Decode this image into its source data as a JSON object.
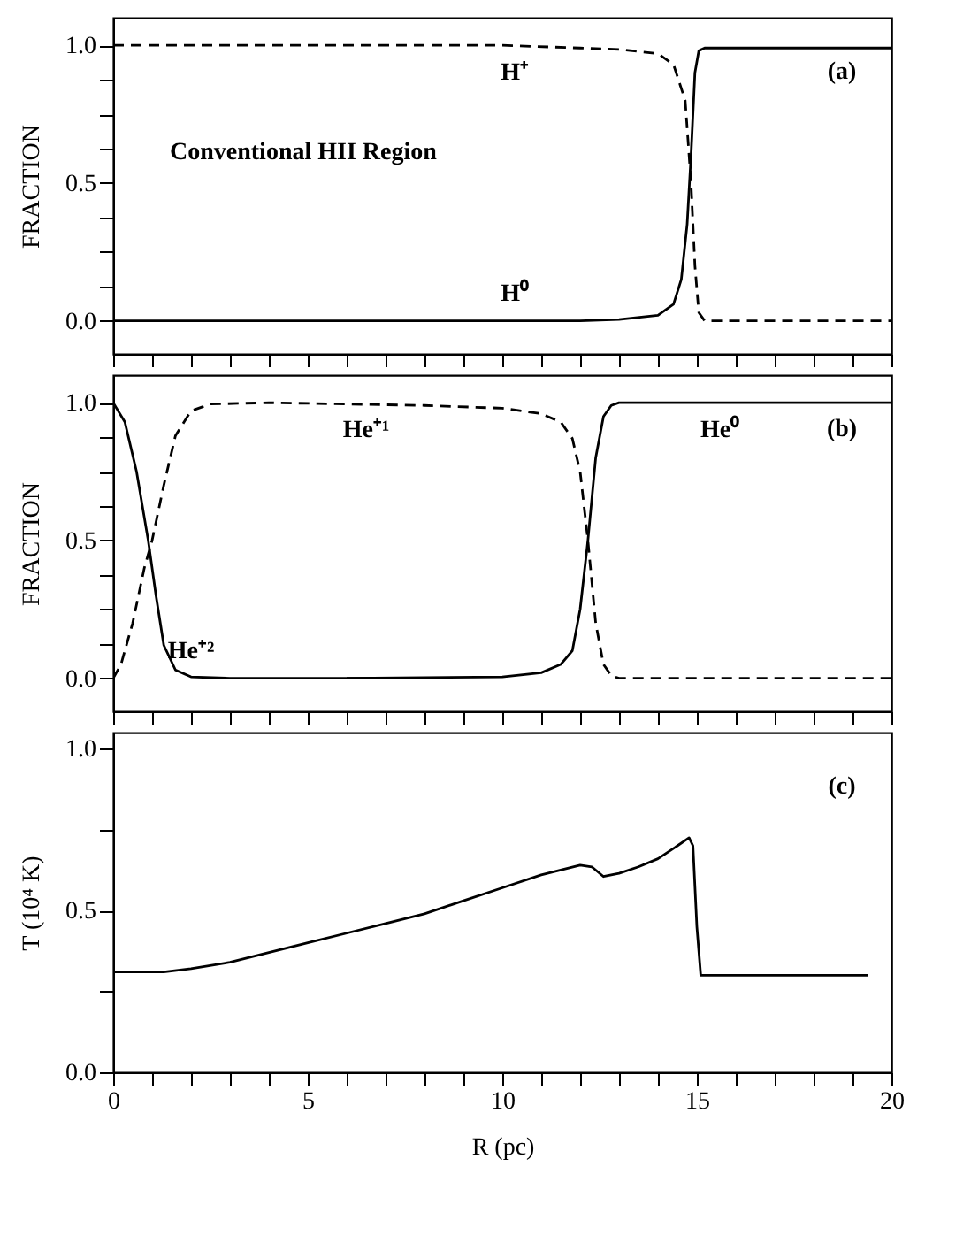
{
  "chart_data": [
    {
      "type": "line",
      "ylabel": "FRACTION",
      "tick_labels": "y",
      "xlim": [
        0,
        20
      ],
      "ylim": [
        -0.12,
        1.1
      ],
      "xticks": [
        0,
        {
          "value": 1,
          "label": null
        },
        {
          "value": 2,
          "label": null
        },
        {
          "value": 3,
          "label": null
        },
        {
          "value": 4,
          "label": null
        },
        5,
        {
          "value": 6,
          "label": null
        },
        {
          "value": 7,
          "label": null
        },
        {
          "value": 8,
          "label": null
        },
        {
          "value": 9,
          "label": null
        },
        10,
        {
          "value": 11,
          "label": null
        },
        {
          "value": 12,
          "label": null
        },
        {
          "value": 13,
          "label": null
        },
        {
          "value": 14,
          "label": null
        },
        15,
        {
          "value": 16,
          "label": null
        },
        {
          "value": 17,
          "label": null
        },
        {
          "value": 18,
          "label": null
        },
        {
          "value": 19,
          "label": null
        },
        20
      ],
      "yticks": [
        {
          "value": 0,
          "label": "0.0"
        },
        {
          "value": 0.125,
          "label": null
        },
        {
          "value": 0.25,
          "label": null
        },
        {
          "value": 0.375,
          "label": null
        },
        {
          "value": 0.5,
          "label": "0.5"
        },
        {
          "value": 0.625,
          "label": null
        },
        {
          "value": 0.75,
          "label": null
        },
        {
          "value": 0.875,
          "label": null
        },
        {
          "value": 1,
          "label": "1.0"
        }
      ],
      "annotations": [
        "(a)",
        "Conventional HII Region"
      ],
      "series": [
        {
          "name": "H⁺",
          "color": "#000000",
          "line_style": "dashed",
          "x": [
            0,
            2,
            4,
            6,
            8,
            10,
            12,
            13,
            14,
            14.4,
            14.7,
            14.85,
            14.95,
            15.05,
            15.2,
            15.5,
            20
          ],
          "values": [
            1,
            1,
            1,
            1,
            1,
            1,
            0.99,
            0.985,
            0.97,
            0.93,
            0.8,
            0.5,
            0.2,
            0.03,
            0,
            0,
            0
          ]
        },
        {
          "name": "H⁰",
          "color": "#000000",
          "line_style": "solid",
          "x": [
            0,
            4,
            8,
            12,
            13,
            14,
            14.4,
            14.6,
            14.75,
            14.85,
            14.95,
            15.05,
            15.2,
            20
          ],
          "values": [
            0,
            0,
            0,
            0,
            0.005,
            0.02,
            0.06,
            0.15,
            0.35,
            0.6,
            0.9,
            0.98,
            0.99,
            0.99
          ]
        }
      ]
    },
    {
      "type": "line",
      "ylabel": "FRACTION",
      "tick_labels": "y",
      "xlim": [
        0,
        20
      ],
      "ylim": [
        -0.12,
        1.1
      ],
      "xticks": [
        0,
        {
          "value": 1,
          "label": null
        },
        {
          "value": 2,
          "label": null
        },
        {
          "value": 3,
          "label": null
        },
        {
          "value": 4,
          "label": null
        },
        5,
        {
          "value": 6,
          "label": null
        },
        {
          "value": 7,
          "label": null
        },
        {
          "value": 8,
          "label": null
        },
        {
          "value": 9,
          "label": null
        },
        10,
        {
          "value": 11,
          "label": null
        },
        {
          "value": 12,
          "label": null
        },
        {
          "value": 13,
          "label": null
        },
        {
          "value": 14,
          "label": null
        },
        15,
        {
          "value": 16,
          "label": null
        },
        {
          "value": 17,
          "label": null
        },
        {
          "value": 18,
          "label": null
        },
        {
          "value": 19,
          "label": null
        },
        20
      ],
      "yticks": [
        {
          "value": 0,
          "label": "0.0"
        },
        {
          "value": 0.125,
          "label": null
        },
        {
          "value": 0.25,
          "label": null
        },
        {
          "value": 0.375,
          "label": null
        },
        {
          "value": 0.5,
          "label": "0.5"
        },
        {
          "value": 0.625,
          "label": null
        },
        {
          "value": 0.75,
          "label": null
        },
        {
          "value": 0.875,
          "label": null
        },
        {
          "value": 1,
          "label": "1.0"
        }
      ],
      "annotations": [
        "(b)"
      ],
      "series": [
        {
          "name": "He⁺²",
          "color": "#000000",
          "line_style": "solid",
          "x": [
            0,
            0.3,
            0.6,
            0.9,
            1.1,
            1.3,
            1.6,
            2,
            3,
            7
          ],
          "values": [
            1,
            0.93,
            0.75,
            0.5,
            0.3,
            0.12,
            0.03,
            0.005,
            0,
            0
          ]
        },
        {
          "name": "He⁺¹",
          "color": "#000000",
          "line_style": "dashed",
          "x": [
            0,
            0.2,
            0.5,
            0.8,
            1.0,
            1.3,
            1.6,
            2,
            2.5,
            4,
            6,
            8,
            10,
            11,
            11.5,
            11.8,
            12,
            12.2,
            12.4,
            12.6,
            12.8,
            13,
            14,
            20
          ],
          "values": [
            0,
            0.05,
            0.2,
            0.4,
            0.5,
            0.7,
            0.88,
            0.97,
            0.995,
            1,
            0.995,
            0.99,
            0.98,
            0.96,
            0.93,
            0.87,
            0.75,
            0.5,
            0.2,
            0.05,
            0.01,
            0,
            0,
            0
          ]
        },
        {
          "name": "He⁰",
          "color": "#000000",
          "line_style": "solid",
          "x": [
            6,
            10,
            11,
            11.5,
            11.8,
            12,
            12.2,
            12.4,
            12.6,
            12.8,
            13,
            14,
            20
          ],
          "values": [
            0,
            0.005,
            0.02,
            0.05,
            0.1,
            0.25,
            0.5,
            0.8,
            0.95,
            0.99,
            1,
            1,
            1
          ]
        }
      ]
    },
    {
      "type": "line",
      "ylabel": "T (10⁴ K)",
      "xlabel": "R (pc)",
      "xlim": [
        0,
        20
      ],
      "ylim": [
        0,
        1.05
      ],
      "xticks": [
        0,
        {
          "value": 1,
          "label": null
        },
        {
          "value": 2,
          "label": null
        },
        {
          "value": 3,
          "label": null
        },
        {
          "value": 4,
          "label": null
        },
        5,
        {
          "value": 6,
          "label": null
        },
        {
          "value": 7,
          "label": null
        },
        {
          "value": 8,
          "label": null
        },
        {
          "value": 9,
          "label": null
        },
        10,
        {
          "value": 11,
          "label": null
        },
        {
          "value": 12,
          "label": null
        },
        {
          "value": 13,
          "label": null
        },
        {
          "value": 14,
          "label": null
        },
        15,
        {
          "value": 16,
          "label": null
        },
        {
          "value": 17,
          "label": null
        },
        {
          "value": 18,
          "label": null
        },
        {
          "value": 19,
          "label": null
        },
        20
      ],
      "yticks": [
        {
          "value": 0,
          "label": "0.0"
        },
        {
          "value": 0.25,
          "label": null
        },
        {
          "value": 0.5,
          "label": "0.5"
        },
        {
          "value": 0.75,
          "label": null
        },
        {
          "value": 1,
          "label": "1.0"
        }
      ],
      "annotations": [
        "(c)"
      ],
      "series": [
        {
          "color": "#000000",
          "line_style": "solid",
          "x": [
            0,
            1.3,
            2,
            3,
            4,
            5,
            6,
            7,
            7.5,
            8,
            9,
            10,
            11,
            12,
            12.3,
            12.6,
            13,
            13.5,
            14,
            14.5,
            14.8,
            14.9,
            15,
            15.1,
            19.4
          ],
          "values": [
            0.31,
            0.31,
            0.32,
            0.34,
            0.37,
            0.4,
            0.43,
            0.46,
            0.475,
            0.49,
            0.53,
            0.57,
            0.61,
            0.64,
            0.635,
            0.605,
            0.615,
            0.635,
            0.66,
            0.7,
            0.725,
            0.7,
            0.45,
            0.3,
            0.3
          ]
        }
      ]
    }
  ]
}
